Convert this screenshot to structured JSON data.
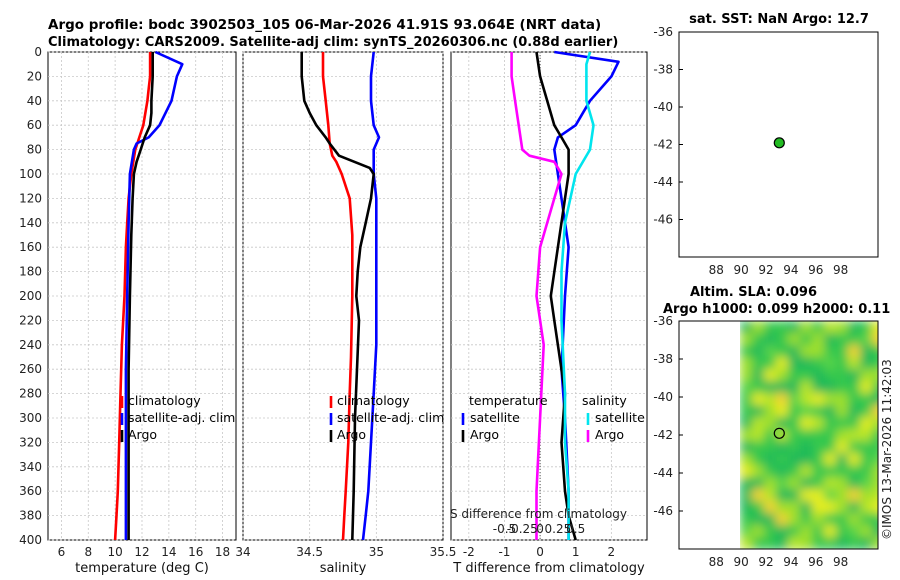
{
  "header": {
    "title_line1": "Argo profile: bodc 3902503_105 06-Mar-2026 41.91S 93.064E (NRT data)",
    "title_line2": "Climatology: CARS2009. Satellite-adj clim: synTS_20260306.nc (0.88d earlier)"
  },
  "colors": {
    "climatology": "#ff0000",
    "satellite": "#0000ff",
    "argo": "#000000",
    "salinity_satellite": "#00e5ee",
    "salinity_argo": "#ff00ff"
  },
  "chart_data": [
    {
      "type": "line",
      "id": "temperature",
      "xlabel": "temperature (deg C)",
      "ylabel": "",
      "xlim": [
        5,
        19
      ],
      "ylim": [
        0,
        400
      ],
      "xticks": [
        6,
        8,
        10,
        12,
        14,
        16,
        18
      ],
      "yticks": [
        0,
        20,
        40,
        60,
        80,
        100,
        120,
        140,
        160,
        180,
        200,
        220,
        240,
        260,
        280,
        300,
        320,
        340,
        360,
        380,
        400
      ],
      "series": [
        {
          "name": "climatology",
          "color": "#ff0000",
          "x": [
            12.6,
            12.6,
            12.5,
            12.4,
            12.1,
            11.5,
            11.2,
            11.0,
            10.9,
            10.8,
            10.7,
            10.5,
            10.4,
            10.3,
            10.2,
            10.1,
            10.0
          ],
          "y": [
            0,
            20,
            30,
            40,
            60,
            80,
            100,
            120,
            140,
            160,
            200,
            240,
            280,
            320,
            360,
            380,
            400
          ]
        },
        {
          "name": "satellite-adj. clim",
          "color": "#0000ff",
          "x": [
            13.0,
            15.0,
            14.6,
            14.2,
            13.3,
            12.5,
            11.6,
            11.4,
            11.1,
            11.0,
            10.9,
            10.8,
            10.8,
            10.8,
            10.8
          ],
          "y": [
            0,
            10,
            20,
            40,
            60,
            70,
            75,
            80,
            100,
            140,
            200,
            260,
            320,
            360,
            400
          ]
        },
        {
          "name": "Argo",
          "color": "#000000",
          "x": [
            12.8,
            12.8,
            12.7,
            12.7,
            12.6,
            12.2,
            11.9,
            11.6,
            11.4,
            11.3,
            11.2,
            11.1,
            11.0,
            11.0,
            11.0,
            11.0
          ],
          "y": [
            0,
            20,
            40,
            50,
            60,
            70,
            80,
            90,
            100,
            120,
            150,
            200,
            260,
            320,
            370,
            400
          ]
        }
      ],
      "legend": [
        "climatology",
        "satellite-adj. clim",
        "Argo"
      ]
    },
    {
      "type": "line",
      "id": "salinity",
      "xlabel": "salinity",
      "ylabel": "",
      "xlim": [
        34,
        35.5
      ],
      "ylim": [
        0,
        400
      ],
      "xticks": [
        34,
        34.5,
        35,
        35.5
      ],
      "series": [
        {
          "name": "climatology",
          "color": "#ff0000",
          "x": [
            34.6,
            34.6,
            34.62,
            34.64,
            34.65,
            34.67,
            34.7,
            34.74,
            34.8,
            34.82,
            34.82,
            34.81,
            34.8,
            34.79,
            34.77,
            34.76,
            34.75
          ],
          "y": [
            0,
            20,
            40,
            60,
            75,
            85,
            90,
            100,
            120,
            150,
            200,
            250,
            280,
            320,
            360,
            380,
            400
          ]
        },
        {
          "name": "satellite-adj. clim",
          "color": "#0000ff",
          "x": [
            34.98,
            34.96,
            34.96,
            34.98,
            35.02,
            34.98,
            34.98,
            35.0,
            35.0,
            35.0,
            34.98,
            34.96,
            34.94,
            34.92,
            34.9
          ],
          "y": [
            0,
            20,
            40,
            60,
            70,
            80,
            100,
            120,
            160,
            240,
            280,
            320,
            360,
            380,
            400
          ]
        },
        {
          "name": "Argo",
          "color": "#000000",
          "x": [
            34.44,
            34.44,
            34.46,
            34.5,
            34.55,
            34.62,
            34.65,
            34.72,
            34.95,
            34.98,
            34.96,
            34.92,
            34.88,
            34.86,
            34.85,
            34.87,
            34.84,
            34.83,
            34.82
          ],
          "y": [
            0,
            20,
            40,
            50,
            60,
            70,
            75,
            85,
            95,
            100,
            120,
            140,
            160,
            180,
            200,
            220,
            300,
            360,
            400
          ]
        }
      ],
      "legend": [
        "climatology",
        "satellite-adj. clim",
        "Argo"
      ]
    },
    {
      "type": "line",
      "id": "difference",
      "xlabel": "T difference from climatology",
      "xlabel_top": "S difference from climatology",
      "xlim": [
        -2.5,
        3
      ],
      "ylim": [
        0,
        400
      ],
      "xticks": [
        -2,
        -1,
        0,
        1,
        2
      ],
      "xticks_s": [
        "-0.5",
        "-0.25",
        "0",
        "0.25",
        "0.5"
      ],
      "xticks_s_pos": [
        -1.0,
        -0.5,
        0,
        0.5,
        1.0
      ],
      "series": [
        {
          "name": "temperature satellite",
          "color": "#0000ff",
          "x": [
            0.4,
            2.2,
            2.0,
            1.4,
            1.0,
            0.5,
            0.4,
            0.5,
            0.6,
            0.8,
            0.7,
            0.6,
            0.7,
            0.8,
            0.8
          ],
          "y": [
            0,
            8,
            20,
            40,
            60,
            70,
            80,
            100,
            120,
            160,
            200,
            260,
            300,
            360,
            400
          ]
        },
        {
          "name": "temperature Argo",
          "color": "#000000",
          "x": [
            -0.1,
            0.0,
            0.2,
            0.4,
            0.6,
            0.8,
            0.8,
            0.7,
            0.5,
            0.3,
            0.4,
            0.7,
            0.6,
            0.7,
            0.8,
            1.0
          ],
          "y": [
            0,
            20,
            40,
            60,
            70,
            80,
            100,
            120,
            160,
            200,
            220,
            280,
            320,
            360,
            380,
            400
          ]
        },
        {
          "name": "salinity satellite",
          "color": "#00e5ee",
          "x": [
            1.4,
            1.3,
            1.3,
            1.5,
            1.4,
            1.0,
            0.7,
            0.6,
            0.6,
            0.7,
            0.7,
            0.8,
            0.8
          ],
          "y": [
            0,
            10,
            40,
            60,
            80,
            100,
            140,
            180,
            220,
            280,
            320,
            360,
            400
          ]
        },
        {
          "name": "salinity Argo",
          "color": "#ff00ff",
          "x": [
            -0.8,
            -0.8,
            -0.7,
            -0.6,
            -0.5,
            -0.3,
            0.4,
            0.6,
            0.4,
            0.0,
            -0.1,
            0.1,
            0.0,
            -0.1,
            -0.1
          ],
          "y": [
            0,
            20,
            40,
            60,
            80,
            85,
            90,
            100,
            120,
            160,
            200,
            240,
            300,
            360,
            400
          ]
        }
      ],
      "legend_groups": {
        "temperature": "temperature",
        "salinity": "salinity"
      },
      "legend": [
        "satellite",
        "Argo",
        "satellite",
        "Argo"
      ]
    },
    {
      "type": "scatter",
      "id": "sst-map",
      "title": "sat. SST: NaN Argo: 12.7",
      "xlim": [
        85,
        101
      ],
      "ylim": [
        -48,
        -36
      ],
      "xticks": [
        88,
        90,
        92,
        94,
        96,
        98
      ],
      "yticks": [
        -36,
        -38,
        -40,
        -42,
        -44,
        -46
      ],
      "points": [
        {
          "x": 93.064,
          "y": -41.91,
          "color": "#22bb22"
        }
      ]
    },
    {
      "type": "heatmap",
      "id": "altim-map",
      "title_line1": "Altim. SLA: 0.096",
      "title_line2": "Argo h1000: 0.099 h2000: 0.11",
      "xlim": [
        85,
        101
      ],
      "ylim": [
        -48,
        -36
      ],
      "xticks": [
        88,
        90,
        92,
        94,
        96,
        98
      ],
      "yticks": [
        -36,
        -38,
        -40,
        -42,
        -44,
        -46
      ],
      "data_xlim": [
        89.9,
        101
      ],
      "points": [
        {
          "x": 93.064,
          "y": -41.91,
          "color": "#000000"
        }
      ]
    }
  ],
  "footer": {
    "stamp": "©IMOS 13-Mar-2026 11:42:03"
  }
}
